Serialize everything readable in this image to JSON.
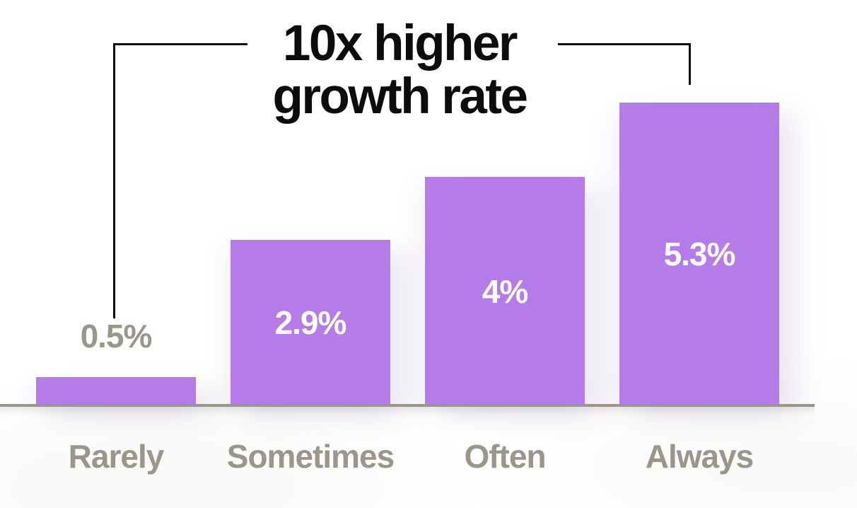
{
  "annotation": {
    "line1": "10x higher",
    "line2": "growth rate"
  },
  "chart_data": {
    "type": "bar",
    "title": "10x higher growth rate",
    "categories": [
      "Rarely",
      "Sometimes",
      "Often",
      "Always"
    ],
    "values": [
      0.5,
      2.9,
      4,
      5.3
    ],
    "value_labels": [
      "0.5%",
      "2.9%",
      "4%",
      "5.3%"
    ],
    "value_label_positions": [
      "outside",
      "inside",
      "inside",
      "inside"
    ],
    "ylim": [
      0,
      5.6
    ],
    "xlabel": "",
    "ylabel": "",
    "grid": false,
    "legend": false,
    "annotation_note": "bracket connects Rarely bar to Always bar under the title",
    "colors": {
      "bar": "#b57ce9",
      "inside_value_label": "#ffffff",
      "outside_value_label": "#9b968a",
      "axis_line": "#9b968a",
      "axis_tick_label": "#9b968a",
      "annotation_text": "#0c0c0c",
      "connector_line": "#0c0c0c",
      "background": "#ffffff"
    }
  }
}
